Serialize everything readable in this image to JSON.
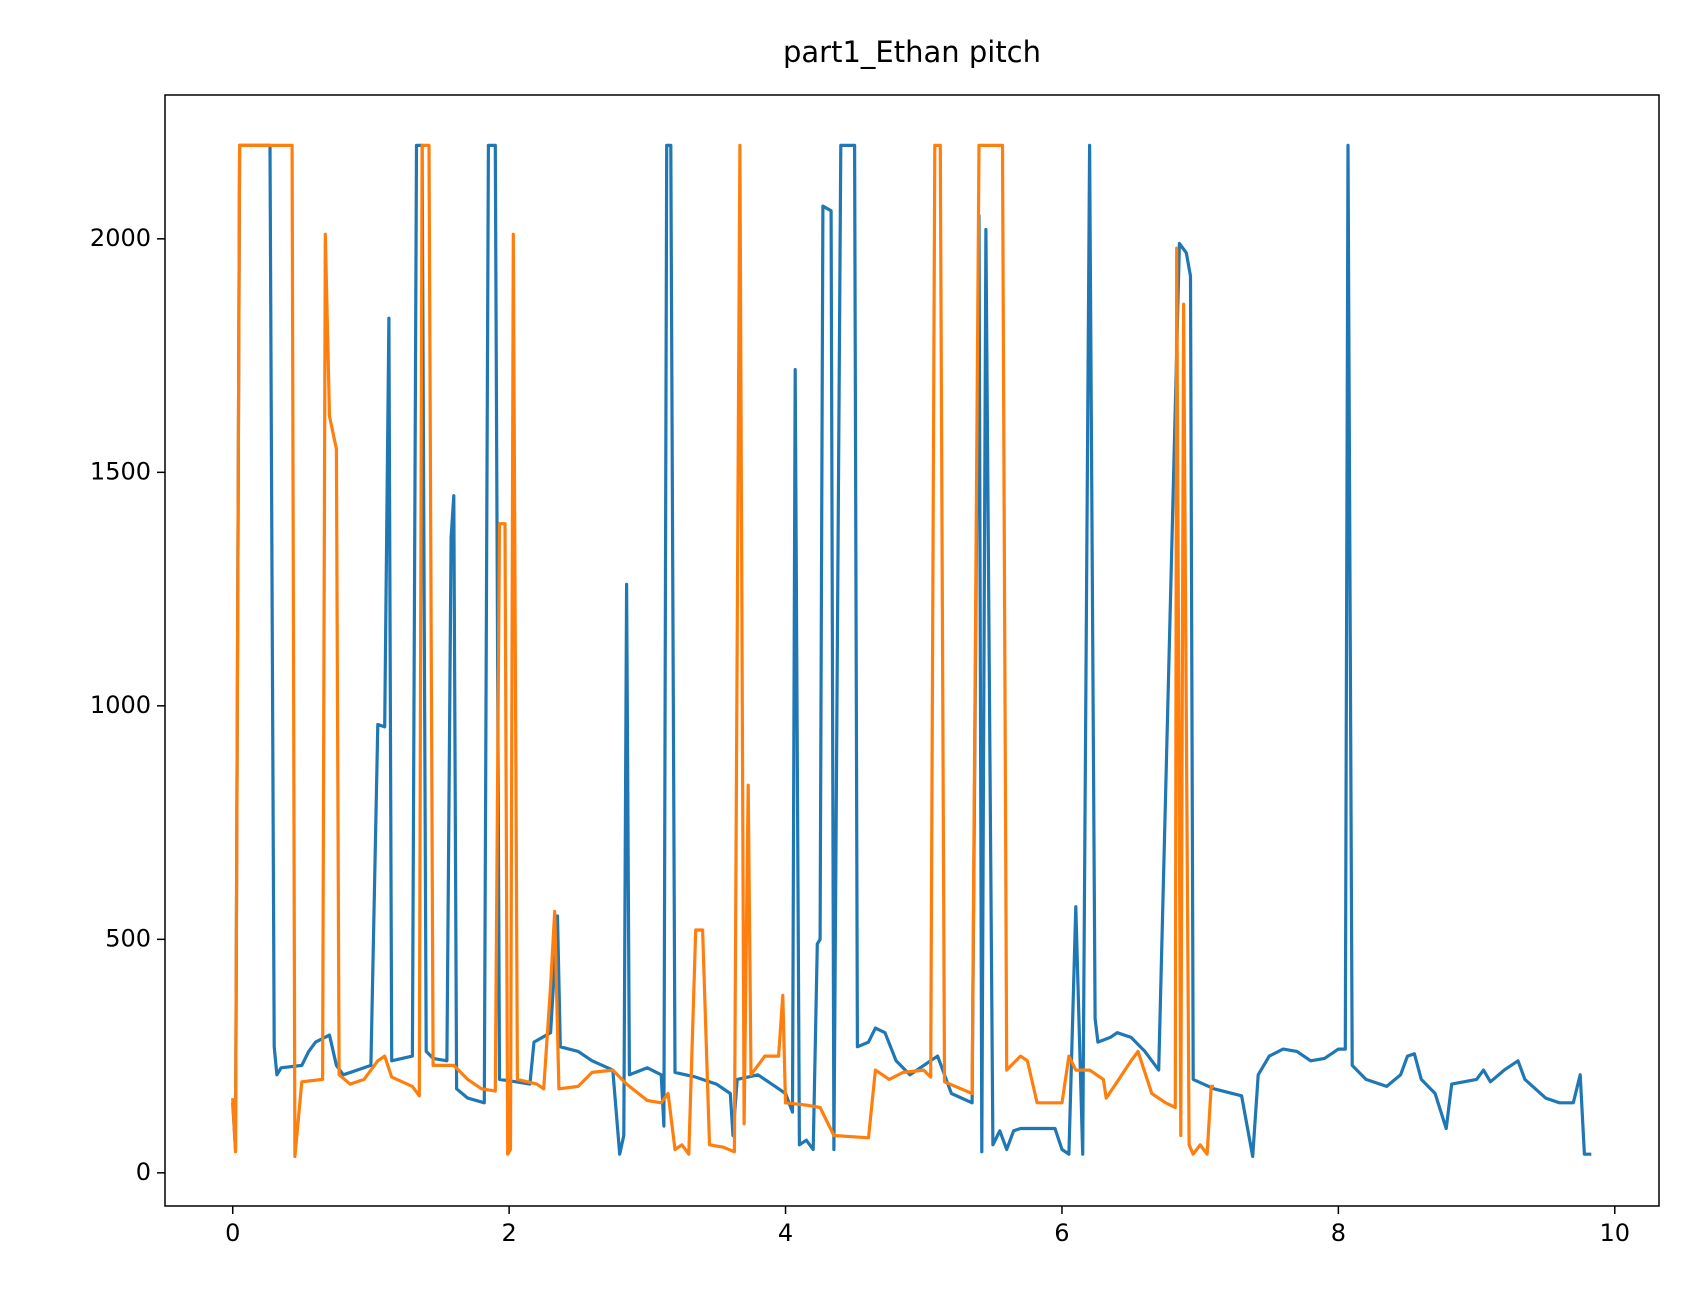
{
  "chart_data": {
    "type": "line",
    "title": "part1_Ethan pitch",
    "xlim": [
      -0.49,
      10.32
    ],
    "xticks": [
      0,
      2,
      4,
      6,
      8,
      10
    ],
    "ylim": [
      -71,
      2308
    ],
    "yticks": [
      0,
      500,
      1000,
      1500,
      2000
    ],
    "grid": false,
    "series": [
      {
        "color": "#1f77b4",
        "x": [
          0,
          0.02,
          0.05,
          0.27,
          0.3,
          0.32,
          0.35,
          0.5,
          0.55,
          0.6,
          0.7,
          0.75,
          0.8,
          0.9,
          1.0,
          1.05,
          1.1,
          1.13,
          1.15,
          1.3,
          1.33,
          1.37,
          1.4,
          1.45,
          1.55,
          1.58,
          1.6,
          1.62,
          1.7,
          1.82,
          1.85,
          1.9,
          1.93,
          2.05,
          2.15,
          2.18,
          2.3,
          2.35,
          2.37,
          2.5,
          2.6,
          2.75,
          2.8,
          2.83,
          2.85,
          2.87,
          3.0,
          3.1,
          3.12,
          3.14,
          3.17,
          3.2,
          3.35,
          3.5,
          3.6,
          3.62,
          3.65,
          3.8,
          3.9,
          4.0,
          4.05,
          4.07,
          4.1,
          4.15,
          4.2,
          4.23,
          4.25,
          4.27,
          4.33,
          4.35,
          4.4,
          4.5,
          4.52,
          4.6,
          4.65,
          4.72,
          4.8,
          4.9,
          5.0,
          5.1,
          5.2,
          5.35,
          5.4,
          5.42,
          5.45,
          5.5,
          5.55,
          5.6,
          5.65,
          5.7,
          5.95,
          6.0,
          6.05,
          6.1,
          6.15,
          6.2,
          6.24,
          6.26,
          6.35,
          6.4,
          6.5,
          6.6,
          6.7,
          6.85,
          6.9,
          6.93,
          6.95,
          7.1,
          7.3,
          7.38,
          7.42,
          7.5,
          7.6,
          7.7,
          7.8,
          7.9,
          8.0,
          8.05,
          8.07,
          8.1,
          8.2,
          8.35,
          8.45,
          8.5,
          8.55,
          8.6,
          8.7,
          8.78,
          8.82,
          9.0,
          9.05,
          9.1,
          9.2,
          9.3,
          9.35,
          9.5,
          9.6,
          9.7,
          9.75,
          9.78,
          9.83
        ],
        "values": [
          150,
          50,
          2200,
          2200,
          270,
          210,
          225,
          230,
          260,
          280,
          295,
          230,
          210,
          220,
          230,
          960,
          955,
          1830,
          240,
          250,
          2200,
          2200,
          260,
          245,
          240,
          1360,
          1450,
          180,
          160,
          150,
          2200,
          2200,
          200,
          195,
          190,
          280,
          300,
          550,
          270,
          260,
          240,
          220,
          40,
          80,
          1260,
          210,
          225,
          210,
          100,
          2200,
          2200,
          215,
          205,
          190,
          170,
          80,
          200,
          210,
          190,
          170,
          130,
          1720,
          60,
          70,
          50,
          490,
          500,
          2070,
          2060,
          50,
          2200,
          2200,
          270,
          280,
          310,
          300,
          240,
          210,
          230,
          250,
          170,
          150,
          2050,
          45,
          2020,
          60,
          90,
          50,
          90,
          95,
          95,
          50,
          40,
          570,
          40,
          2200,
          330,
          280,
          290,
          300,
          290,
          260,
          220,
          1990,
          1970,
          1920,
          200,
          180,
          165,
          35,
          210,
          250,
          265,
          260,
          240,
          245,
          265,
          265,
          2200,
          230,
          200,
          185,
          210,
          250,
          255,
          200,
          170,
          95,
          190,
          200,
          220,
          195,
          220,
          240,
          200,
          160,
          150,
          150,
          210,
          40,
          40
        ]
      },
      {
        "color": "#ff7f0e",
        "x": [
          0,
          0.02,
          0.05,
          0.43,
          0.45,
          0.5,
          0.65,
          0.67,
          0.7,
          0.75,
          0.77,
          0.85,
          0.95,
          1.05,
          1.1,
          1.15,
          1.3,
          1.35,
          1.37,
          1.42,
          1.45,
          1.6,
          1.7,
          1.8,
          1.9,
          1.93,
          1.97,
          1.99,
          2.01,
          2.03,
          2.06,
          2.2,
          2.25,
          2.3,
          2.33,
          2.36,
          2.5,
          2.6,
          2.75,
          2.85,
          3.0,
          3.1,
          3.15,
          3.2,
          3.25,
          3.3,
          3.35,
          3.4,
          3.45,
          3.55,
          3.63,
          3.67,
          3.7,
          3.73,
          3.75,
          3.85,
          3.95,
          3.98,
          4.0,
          4.15,
          4.25,
          4.35,
          4.6,
          4.65,
          4.75,
          4.85,
          5.0,
          5.05,
          5.08,
          5.12,
          5.15,
          5.35,
          5.4,
          5.57,
          5.6,
          5.7,
          5.75,
          5.82,
          6.0,
          6.05,
          6.1,
          6.2,
          6.3,
          6.32,
          6.4,
          6.5,
          6.55,
          6.65,
          6.75,
          6.82,
          6.83,
          6.86,
          6.88,
          6.92,
          6.95,
          7.0,
          7.05,
          7.08,
          7.1
        ],
        "values": [
          160,
          45,
          2200,
          2200,
          35,
          195,
          200,
          2010,
          1620,
          1550,
          210,
          190,
          200,
          240,
          250,
          205,
          185,
          165,
          2200,
          2200,
          230,
          230,
          200,
          180,
          175,
          1390,
          1390,
          40,
          50,
          2010,
          200,
          190,
          180,
          400,
          560,
          180,
          185,
          215,
          220,
          190,
          155,
          150,
          170,
          50,
          60,
          40,
          520,
          520,
          60,
          55,
          45,
          2200,
          105,
          830,
          210,
          250,
          250,
          380,
          150,
          145,
          140,
          80,
          75,
          220,
          200,
          215,
          220,
          205,
          2200,
          2200,
          195,
          170,
          2200,
          2200,
          220,
          250,
          240,
          150,
          150,
          250,
          220,
          220,
          200,
          160,
          195,
          240,
          260,
          170,
          150,
          140,
          1980,
          80,
          1860,
          60,
          40,
          60,
          40,
          185,
          185
        ]
      }
    ]
  }
}
